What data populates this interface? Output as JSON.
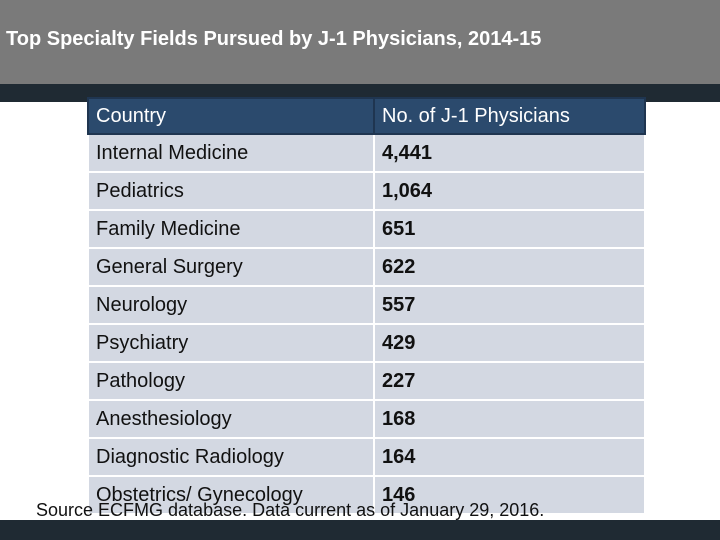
{
  "title": "Top Specialty Fields Pursued by J-1 Physicians, 2014-15",
  "colors": {
    "title_bar": "#7a7a7a",
    "dark_band": "#1f2a33",
    "header_fill": "#2b4a6d",
    "row_fill": "#d3d8e2"
  },
  "table": {
    "headers": [
      "Country",
      "No. of J-1 Physicians"
    ],
    "rows": [
      [
        "Internal Medicine",
        "4,441"
      ],
      [
        "Pediatrics",
        "1,064"
      ],
      [
        "Family Medicine",
        "651"
      ],
      [
        "General Surgery",
        "622"
      ],
      [
        "Neurology",
        "557"
      ],
      [
        "Psychiatry",
        "429"
      ],
      [
        "Pathology",
        "227"
      ],
      [
        "Anesthesiology",
        "168"
      ],
      [
        "Diagnostic Radiology",
        "164"
      ],
      [
        "Obstetrics/ Gynecology",
        "146"
      ]
    ]
  },
  "source": "Source ECFMG database. Data current as of January 29, 2016."
}
